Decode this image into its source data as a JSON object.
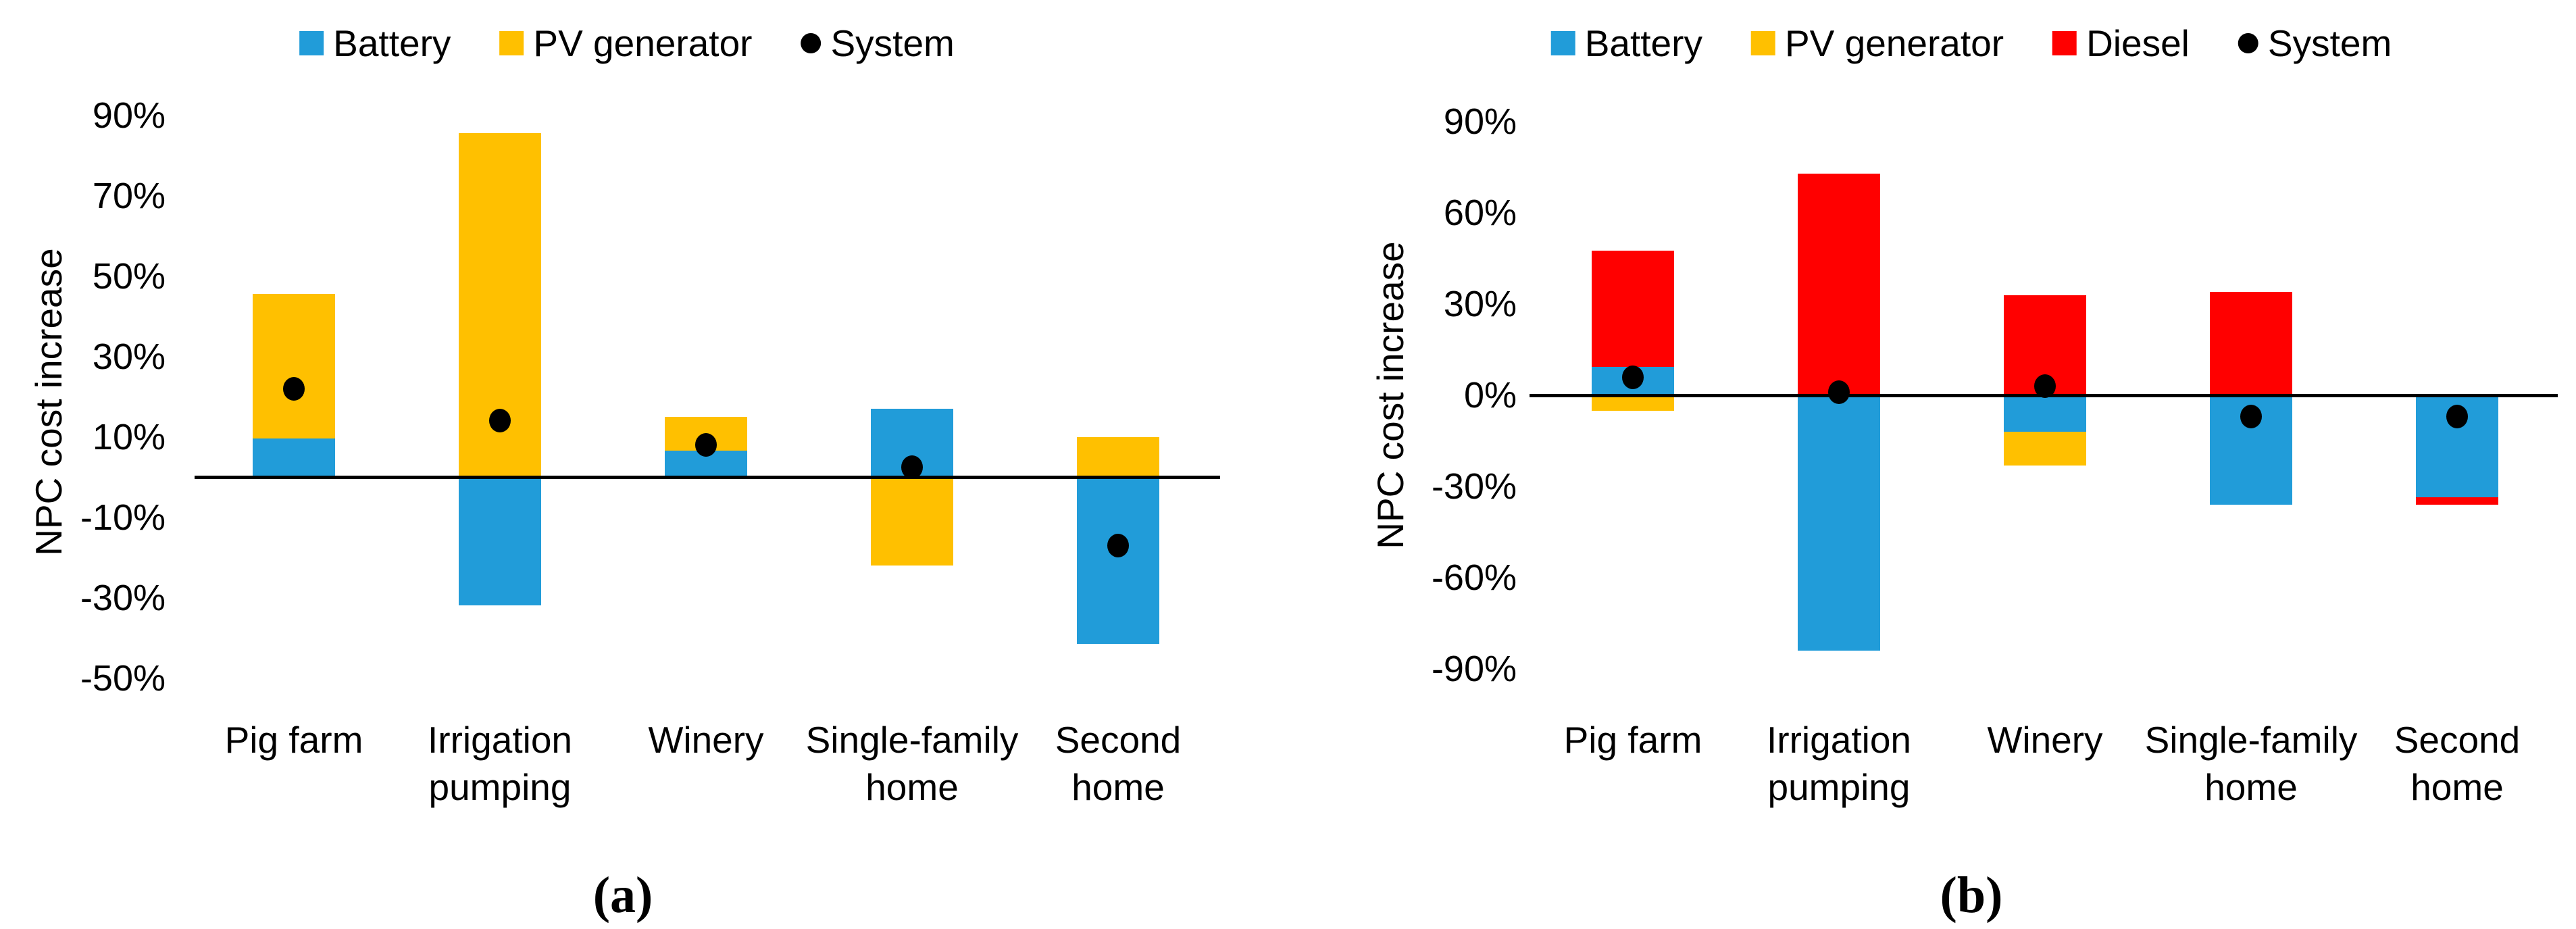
{
  "figure": {
    "panels": [
      {
        "caption": "(a)"
      },
      {
        "caption": "(b)"
      }
    ]
  },
  "chart_data": [
    {
      "type": "bar",
      "panel": "a",
      "stacked": true,
      "title": "",
      "ylabel": "NPC cost increase",
      "unit": "percent",
      "legend_position": "top",
      "grid": false,
      "categories": [
        "Pig farm",
        "Irrigation pumping",
        "Winery",
        "Single-family home",
        "Second home"
      ],
      "category_lines": [
        [
          "Pig farm"
        ],
        [
          "Irrigation",
          "pumping"
        ],
        [
          "Winery"
        ],
        [
          "Single-family",
          "home"
        ],
        [
          "Second",
          "home"
        ]
      ],
      "yticks": [
        90,
        70,
        50,
        30,
        10,
        -10,
        -30,
        -50
      ],
      "ytick_labels": [
        "90%",
        "70%",
        "50%",
        "30%",
        "10%",
        "-10%",
        "-30%",
        "-50%"
      ],
      "ylim": [
        -58,
        96
      ],
      "series": [
        {
          "name": "Battery",
          "color": "#219CD9",
          "segments": [
            [
              0,
              9.5
            ],
            [
              -32,
              0
            ],
            [
              0,
              6.5
            ],
            [
              0,
              17
            ],
            [
              -41.5,
              0
            ]
          ]
        },
        {
          "name": "PV generator",
          "color": "#FFC000",
          "segments": [
            [
              9.5,
              45.5
            ],
            [
              0,
              85.5
            ],
            [
              6.5,
              15
            ],
            [
              -22,
              0
            ],
            [
              0,
              10
            ]
          ]
        }
      ],
      "dots": {
        "name": "System",
        "color": "#000000",
        "values": [
          22,
          14,
          8,
          2.5,
          -17
        ]
      },
      "legend": [
        "Battery",
        "PV generator",
        "System"
      ]
    },
    {
      "type": "bar",
      "panel": "b",
      "stacked": true,
      "title": "",
      "ylabel": "NPC cost increase",
      "unit": "percent",
      "legend_position": "top",
      "grid": false,
      "categories": [
        "Pig farm",
        "Irrigation pumping",
        "Winery",
        "Single-family home",
        "Second home"
      ],
      "category_lines": [
        [
          "Pig farm"
        ],
        [
          "Irrigation",
          "pumping"
        ],
        [
          "Winery"
        ],
        [
          "Single-family",
          "home"
        ],
        [
          "Second",
          "home"
        ]
      ],
      "yticks": [
        90,
        60,
        30,
        0,
        -30,
        -60,
        -90
      ],
      "ytick_labels": [
        "90%",
        "60%",
        "30%",
        "0%",
        "-30%",
        "-60%",
        "-90%"
      ],
      "ylim": [
        -96,
        96
      ],
      "series": [
        {
          "name": "Battery",
          "color": "#219CD9",
          "segments": [
            [
              0,
              9.3
            ],
            [
              -84,
              0
            ],
            [
              -12,
              0
            ],
            [
              -36,
              0
            ],
            [
              -33.5,
              0
            ]
          ]
        },
        {
          "name": "PV generator",
          "color": "#FFC000",
          "segments": [
            [
              -5,
              0
            ],
            null,
            [
              -23,
              -12
            ],
            null,
            null
          ]
        },
        {
          "name": "Diesel",
          "color": "#FF0000",
          "segments": [
            [
              9.3,
              47.6
            ],
            [
              0,
              73
            ],
            [
              0,
              33
            ],
            [
              0,
              34
            ],
            [
              -36,
              -33.5
            ]
          ]
        }
      ],
      "dots": {
        "name": "System",
        "color": "#000000",
        "values": [
          6,
          1,
          3,
          -7,
          -7
        ]
      },
      "legend": [
        "Battery",
        "PV generator",
        "Diesel",
        "System"
      ]
    }
  ]
}
